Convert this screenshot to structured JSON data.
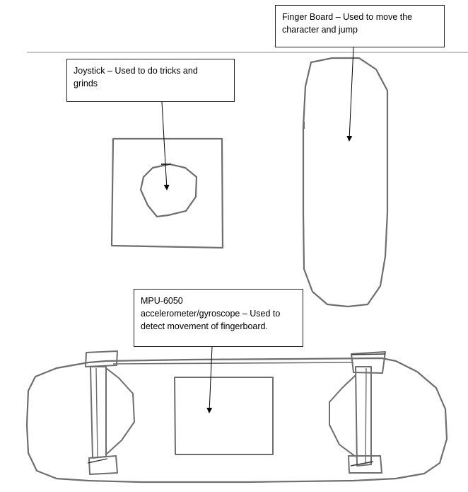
{
  "callouts": {
    "finger_board": {
      "lines": [
        "Finger Board – Used to move the",
        "character and jump"
      ]
    },
    "joystick": {
      "lines": [
        "Joystick – Used to do tricks and",
        "grinds"
      ]
    },
    "mpu": {
      "lines": [
        "MPU-6050",
        "accelerometer/gyroscope – Used to",
        "detect movement of fingerboard."
      ]
    }
  },
  "colors": {
    "sketch_stroke": "#6e6e6e",
    "callout_border": "#222222",
    "divider": "#b0b0b0",
    "arrow": "#000000"
  }
}
